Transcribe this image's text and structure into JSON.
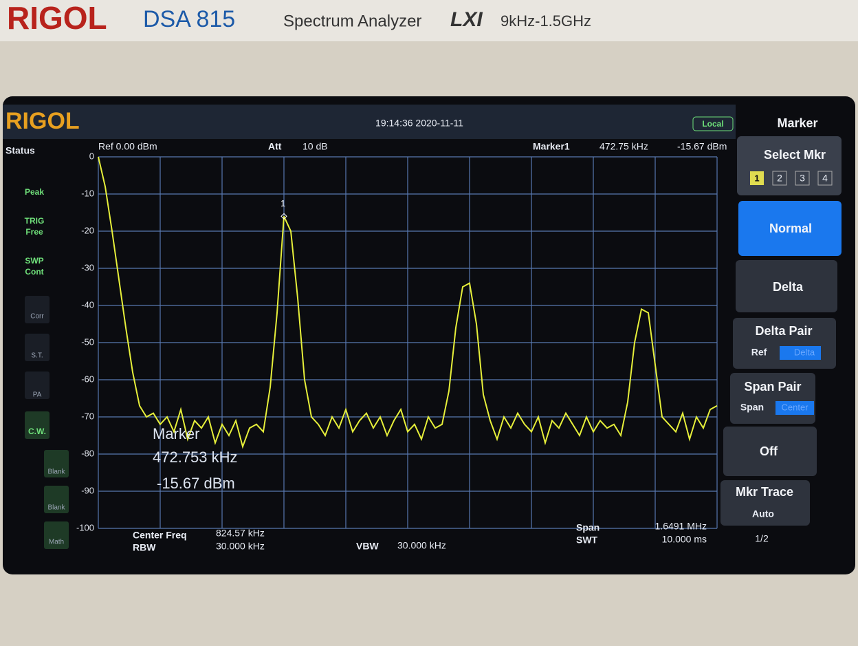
{
  "bezel": {
    "brand": "RIGOL",
    "model": "DSA 815",
    "product": "Spectrum Analyzer",
    "lxi": "LXI",
    "range": "9kHz-1.5GHz"
  },
  "screen": {
    "brand": "RIGOL",
    "datetime": "19:14:36 2020-11-11",
    "mode": "Local",
    "status_title": "Status",
    "status": [
      "Peak",
      "TRIG",
      "Free",
      "SWP",
      "Cont",
      "Corr",
      "S.T.",
      "PA",
      "C.W.",
      "Blank",
      "Blank",
      "Math"
    ],
    "ref": "Ref 0.00 dBm",
    "att_label": "Att",
    "att": "10 dB",
    "marker_label": "Marker1",
    "marker_freq": "472.75 kHz",
    "marker_level": "-15.67 dBm",
    "marker_number": "1",
    "readout": [
      "Marker",
      "472.753 kHz",
      "-15.67 dBm"
    ],
    "bottom": {
      "center_label": "Center Freq",
      "center": "824.57 kHz",
      "rbw_label": "RBW",
      "rbw": "30.000 kHz",
      "vbw_label": "VBW",
      "vbw": "30.000 kHz",
      "span_label": "Span",
      "span": "1.6491 MHz",
      "swt_label": "SWT",
      "swt": "10.000 ms"
    }
  },
  "menu": {
    "title": "Marker",
    "select": "Select Mkr",
    "markers": [
      "1",
      "2",
      "3",
      "4"
    ],
    "normal": "Normal",
    "delta": "Delta",
    "delta_pair": "Delta Pair",
    "ref": "Ref",
    "delta_small": "Delta",
    "span_pair": "Span Pair",
    "span": "Span",
    "center": "Center",
    "off": "Off",
    "mkr_trace": "Mkr Trace",
    "auto": "Auto",
    "page": "1/2"
  },
  "chart_data": {
    "type": "line",
    "color": "#e6ef3a",
    "grid": true,
    "ylim": [
      -100,
      0
    ],
    "yticks": [
      0,
      -10,
      -20,
      -30,
      -40,
      -50,
      -60,
      -70,
      -80,
      -90,
      -100
    ],
    "values": [
      0,
      -8,
      -20,
      -33,
      -46,
      -58,
      -67,
      -70,
      -69,
      -72,
      -70,
      -74,
      -68,
      -76,
      -71,
      -73,
      -70,
      -77,
      -72,
      -75,
      -71,
      -78,
      -73,
      -72,
      -74,
      -62,
      -42,
      -16,
      -20,
      -38,
      -60,
      -70,
      -72,
      -75,
      -70,
      -73,
      -68,
      -74,
      -71,
      -69,
      -73,
      -70,
      -75,
      -71,
      -68,
      -74,
      -72,
      -76,
      -70,
      -73,
      -72,
      -63,
      -46,
      -35,
      -34,
      -45,
      -64,
      -71,
      -76,
      -70,
      -73,
      -69,
      -72,
      -74,
      -70,
      -77,
      -71,
      -73,
      -69,
      -72,
      -75,
      -70,
      -74,
      -71,
      -73,
      -72,
      -75,
      -66,
      -50,
      -41,
      -42,
      -56,
      -70,
      -72,
      -74,
      -69,
      -76,
      -70,
      -73,
      -68,
      -67
    ]
  }
}
